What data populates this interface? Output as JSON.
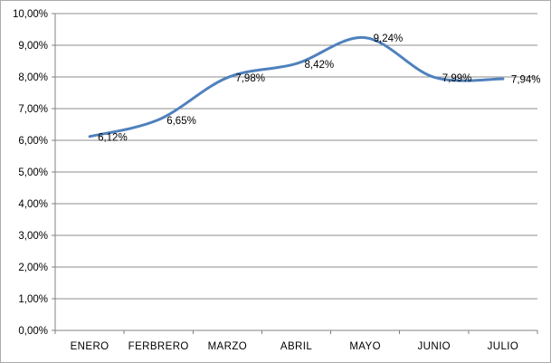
{
  "chart_data": {
    "type": "line",
    "title": "",
    "xlabel": "",
    "ylabel": "",
    "categories": [
      "ENERO",
      "FERBRERO",
      "MARZO",
      "ABRIL",
      "MAYO",
      "JUNIO",
      "JULIO"
    ],
    "series": [
      {
        "name": "",
        "values": [
          6.12,
          6.65,
          7.98,
          8.42,
          9.24,
          7.99,
          7.94
        ],
        "point_labels": [
          "6,12%",
          "6,65%",
          "7,98%",
          "8,42%",
          "9,24%",
          "7,99%",
          "7,94%"
        ]
      }
    ],
    "ylim": [
      0,
      10
    ],
    "y_ticks": {
      "values": [
        0,
        1,
        2,
        3,
        4,
        5,
        6,
        7,
        8,
        9,
        10
      ],
      "labels": [
        "0,00%",
        "1,00%",
        "2,00%",
        "3,00%",
        "4,00%",
        "5,00%",
        "6,00%",
        "7,00%",
        "8,00%",
        "9,00%",
        "10,00%"
      ]
    },
    "grid": true,
    "legend": "none",
    "smoothed": true,
    "colors": {
      "line": "#4F81BD",
      "gridline": "#8C8C8C",
      "axis": "#808080",
      "tick_label": "#000000",
      "data_label": "#000000",
      "border": "#ABABAB",
      "background": "#FFFFFF"
    }
  }
}
